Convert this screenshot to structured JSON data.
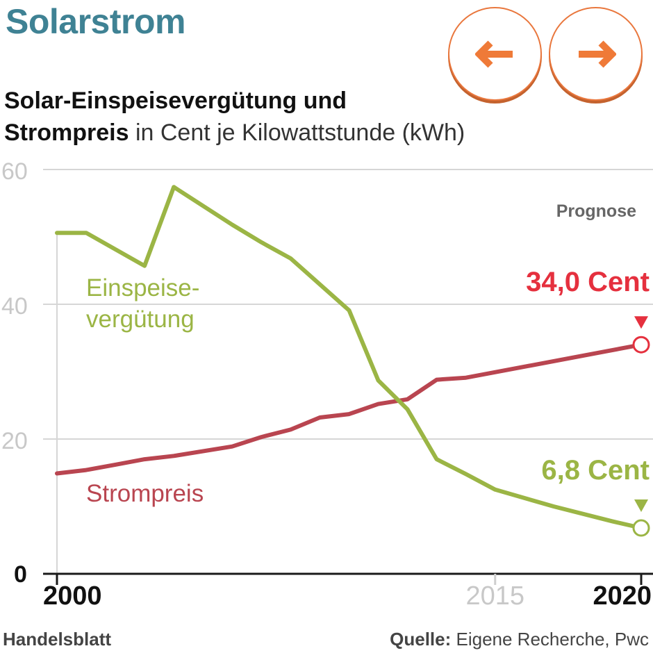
{
  "header": {
    "title": "Solarstrom",
    "prev_icon": "arrow-left-icon",
    "next_icon": "arrow-right-icon",
    "accent_color": "#e9773d"
  },
  "subtitle": {
    "line1": "Solar-Einspeisevergütung und",
    "line2_bold": "Strompreis",
    "line2_rest": " in Cent je Kilowattstunde (kWh)"
  },
  "footer": {
    "brand": "Handelsblatt",
    "source_label": "Quelle:",
    "source_text": " Eigene Recherche, Pwc"
  },
  "chart_data": {
    "type": "line",
    "title": "Solar-Einspeisevergütung und Strompreis in Cent je Kilowattstunde (kWh)",
    "x_range": [
      2000,
      2020
    ],
    "ylim": [
      0,
      60
    ],
    "y_ticks": [
      "0",
      "20",
      "40",
      "60"
    ],
    "x_tick_labels": [
      {
        "value": 2000,
        "label": "2000",
        "emphasis": "bold"
      },
      {
        "value": 2015,
        "label": "2015",
        "emphasis": "muted"
      },
      {
        "value": 2020,
        "label": "2020",
        "emphasis": "bold"
      }
    ],
    "prognose_label": "Prognose",
    "series": [
      {
        "name": "Einspeisevergütung",
        "label_line1": "Einspeise-",
        "label_line2": "vergütung",
        "color": "#9bb545",
        "points": [
          [
            2000,
            50.6
          ],
          [
            2001,
            50.6
          ],
          [
            2003,
            45.7
          ],
          [
            2004,
            57.4
          ],
          [
            2006,
            51.8
          ],
          [
            2007,
            49.2
          ],
          [
            2008,
            46.8
          ],
          [
            2010,
            39.1
          ],
          [
            2011,
            28.7
          ],
          [
            2012,
            24.4
          ],
          [
            2013,
            17.0
          ],
          [
            2014,
            14.8
          ],
          [
            2015,
            12.5
          ],
          [
            2017,
            10.0
          ],
          [
            2019,
            7.8
          ],
          [
            2020,
            6.8
          ]
        ],
        "end_label": "6,8 Cent"
      },
      {
        "name": "Strompreis",
        "label_line1": "Strompreis",
        "color": "#b94550",
        "points": [
          [
            2000,
            14.9
          ],
          [
            2001,
            15.4
          ],
          [
            2002,
            16.2
          ],
          [
            2003,
            17.0
          ],
          [
            2004,
            17.5
          ],
          [
            2006,
            18.9
          ],
          [
            2007,
            20.3
          ],
          [
            2008,
            21.4
          ],
          [
            2009,
            23.2
          ],
          [
            2010,
            23.7
          ],
          [
            2011,
            25.2
          ],
          [
            2012,
            25.9
          ],
          [
            2013,
            28.8
          ],
          [
            2014,
            29.1
          ],
          [
            2020,
            34.0
          ]
        ],
        "end_label": "34,0 Cent",
        "end_label_color": "#e5303e"
      }
    ]
  }
}
